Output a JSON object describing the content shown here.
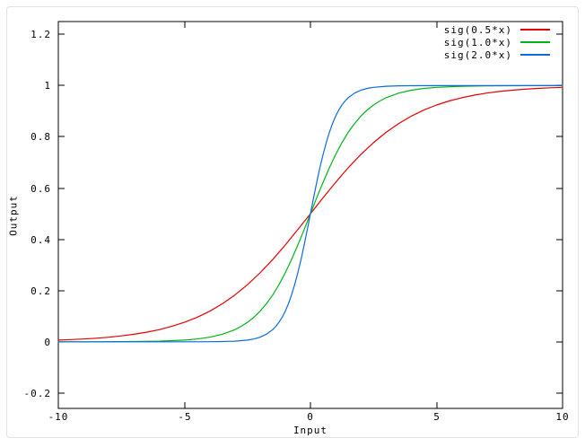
{
  "window": {
    "background": "#ffffff",
    "frame_border_color": "#e2e2e2"
  },
  "chart_data": {
    "type": "line",
    "title": "",
    "xlabel": "Input",
    "ylabel": "Output",
    "xlim": [
      -10,
      10
    ],
    "ylim": [
      -0.26,
      1.25
    ],
    "grid": false,
    "legend_position": "top-right-inside",
    "axis_color": "#000000",
    "text_color": "#000000",
    "xticks": {
      "values": [
        -10,
        -5,
        0,
        5,
        10
      ],
      "labels": [
        "-10",
        "-5",
        "0",
        "5",
        "10"
      ]
    },
    "yticks": {
      "values": [
        -0.2,
        0,
        0.2,
        0.4,
        0.6,
        0.8,
        1,
        1.2
      ],
      "labels": [
        "-0.2",
        "0",
        "0.2",
        "0.4",
        "0.6",
        "0.8",
        "1",
        "1.2"
      ]
    },
    "series": [
      {
        "name": "sig(0.5*x)",
        "color": "#e60000",
        "x": [
          -10,
          -9.5,
          -9,
          -8.5,
          -8,
          -7.5,
          -7,
          -6.5,
          -6,
          -5.5,
          -5,
          -4.5,
          -4,
          -3.5,
          -3,
          -2.5,
          -2,
          -1.5,
          -1,
          -0.5,
          0,
          0.5,
          1,
          1.5,
          2,
          2.5,
          3,
          3.5,
          4,
          4.5,
          5,
          5.5,
          6,
          6.5,
          7,
          7.5,
          8,
          8.5,
          9,
          9.5,
          10
        ],
        "y": [
          0.00669,
          0.00858,
          0.01099,
          0.01406,
          0.01799,
          0.02297,
          0.02931,
          0.03732,
          0.04743,
          0.06009,
          0.07586,
          0.09535,
          0.1192,
          0.14805,
          0.18243,
          0.2227,
          0.26894,
          0.32082,
          0.37754,
          0.43782,
          0.5,
          0.56218,
          0.62246,
          0.67918,
          0.73106,
          0.7773,
          0.81757,
          0.85195,
          0.8808,
          0.90465,
          0.92414,
          0.93991,
          0.95257,
          0.96268,
          0.97069,
          0.97703,
          0.98201,
          0.98594,
          0.98901,
          0.99142,
          0.99331
        ]
      },
      {
        "name": "sig(1.0*x)",
        "color": "#00b418",
        "x": [
          -10,
          -9,
          -8,
          -7,
          -6,
          -5,
          -4.5,
          -4,
          -3.5,
          -3,
          -2.75,
          -2.5,
          -2.25,
          -2,
          -1.75,
          -1.5,
          -1.25,
          -1,
          -0.75,
          -0.5,
          -0.25,
          0,
          0.25,
          0.5,
          0.75,
          1,
          1.25,
          1.5,
          1.75,
          2,
          2.25,
          2.5,
          2.75,
          3,
          3.5,
          4,
          4.5,
          5,
          6,
          7,
          8,
          9,
          10
        ],
        "y": [
          5e-05,
          0.00012,
          0.00034,
          0.00091,
          0.00247,
          0.00669,
          0.01099,
          0.01799,
          0.02931,
          0.04743,
          0.06009,
          0.07586,
          0.09535,
          0.1192,
          0.14805,
          0.18243,
          0.2227,
          0.26894,
          0.32082,
          0.37754,
          0.43782,
          0.5,
          0.56218,
          0.62246,
          0.67918,
          0.73106,
          0.7773,
          0.81757,
          0.85195,
          0.8808,
          0.90465,
          0.92414,
          0.93991,
          0.95257,
          0.97069,
          0.98201,
          0.98901,
          0.99331,
          0.99753,
          0.99909,
          0.99966,
          0.99988,
          0.99995
        ]
      },
      {
        "name": "sig(2.0*x)",
        "color": "#0d6bdd",
        "x": [
          -10,
          -8,
          -6,
          -5,
          -4,
          -3.5,
          -3,
          -2.5,
          -2.25,
          -2,
          -1.75,
          -1.5,
          -1.375,
          -1.25,
          -1.125,
          -1,
          -0.875,
          -0.75,
          -0.625,
          -0.5,
          -0.375,
          -0.25,
          -0.125,
          0,
          0.125,
          0.25,
          0.375,
          0.5,
          0.625,
          0.75,
          0.875,
          1,
          1.125,
          1.25,
          1.375,
          1.5,
          1.75,
          2,
          2.25,
          2.5,
          3,
          3.5,
          4,
          5,
          6,
          8,
          10
        ],
        "y": [
          0,
          0,
          1e-05,
          5e-05,
          0.00034,
          0.00091,
          0.00247,
          0.00669,
          0.01099,
          0.01799,
          0.02931,
          0.04743,
          0.06009,
          0.07586,
          0.09535,
          0.1192,
          0.14805,
          0.18243,
          0.2227,
          0.26894,
          0.32082,
          0.37754,
          0.43782,
          0.5,
          0.56218,
          0.62246,
          0.67918,
          0.73106,
          0.7773,
          0.81757,
          0.85195,
          0.8808,
          0.90465,
          0.92414,
          0.93991,
          0.95257,
          0.97069,
          0.98201,
          0.98901,
          0.99331,
          0.99753,
          0.99909,
          0.99966,
          0.99995,
          0.99999,
          1,
          1
        ]
      }
    ]
  }
}
